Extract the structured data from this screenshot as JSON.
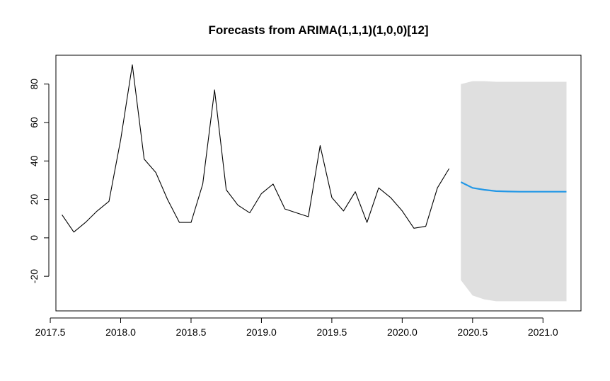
{
  "chart_data": {
    "type": "line",
    "title": "Forecasts from ARIMA(1,1,1)(1,0,0)[12]",
    "xlabel": "",
    "ylabel": "",
    "xlim": [
      2017.54,
      2021.27
    ],
    "ylim": [
      -38,
      95
    ],
    "x_ticks": [
      2017.5,
      2018.0,
      2018.5,
      2019.0,
      2019.5,
      2020.0,
      2020.5,
      2021.0
    ],
    "x_tick_labels": [
      "2017.5",
      "2018.0",
      "2018.5",
      "2019.0",
      "2019.5",
      "2020.0",
      "2020.5",
      "2021.0"
    ],
    "y_ticks": [
      -20,
      0,
      20,
      40,
      60,
      80
    ],
    "y_tick_labels": [
      "-20",
      "0",
      "20",
      "40",
      "60",
      "80"
    ],
    "grid": false,
    "colors": {
      "observed": "#000000",
      "forecast": "#2297e6",
      "interval": "#dfdfdf"
    },
    "series": [
      {
        "role": "observed",
        "x": [
          2017.583,
          2017.667,
          2017.75,
          2017.833,
          2017.917,
          2018.0,
          2018.083,
          2018.167,
          2018.25,
          2018.333,
          2018.417,
          2018.5,
          2018.583,
          2018.667,
          2018.75,
          2018.833,
          2018.917,
          2019.0,
          2019.083,
          2019.167,
          2019.25,
          2019.333,
          2019.417,
          2019.5,
          2019.583,
          2019.667,
          2019.75,
          2019.833,
          2019.917,
          2020.0,
          2020.083,
          2020.167,
          2020.25,
          2020.333
        ],
        "values": [
          12,
          3,
          8,
          14,
          19,
          51,
          90,
          41,
          34,
          20,
          8,
          8,
          28,
          77,
          25,
          17,
          13,
          23,
          28,
          15,
          13,
          11,
          48,
          21,
          14,
          24,
          8,
          26,
          21,
          14,
          5,
          6,
          26,
          36
        ]
      },
      {
        "role": "forecast",
        "x": [
          2020.417,
          2020.5,
          2020.583,
          2020.667,
          2020.75,
          2020.833,
          2020.917,
          2021.0,
          2021.083,
          2021.167
        ],
        "values": [
          29,
          26,
          25,
          24.3,
          24.1,
          24.0,
          24.0,
          24.0,
          24.0,
          24.0
        ]
      }
    ],
    "interval": {
      "x": [
        2020.417,
        2020.5,
        2020.583,
        2020.667,
        2020.75,
        2020.833,
        2020.917,
        2021.0,
        2021.083,
        2021.167
      ],
      "lower": [
        -22,
        -30,
        -32,
        -33,
        -33,
        -33,
        -33,
        -33,
        -33,
        -33
      ],
      "upper": [
        80,
        81.5,
        81.5,
        81.2,
        81.2,
        81.2,
        81.2,
        81.2,
        81.2,
        81.2
      ]
    }
  }
}
